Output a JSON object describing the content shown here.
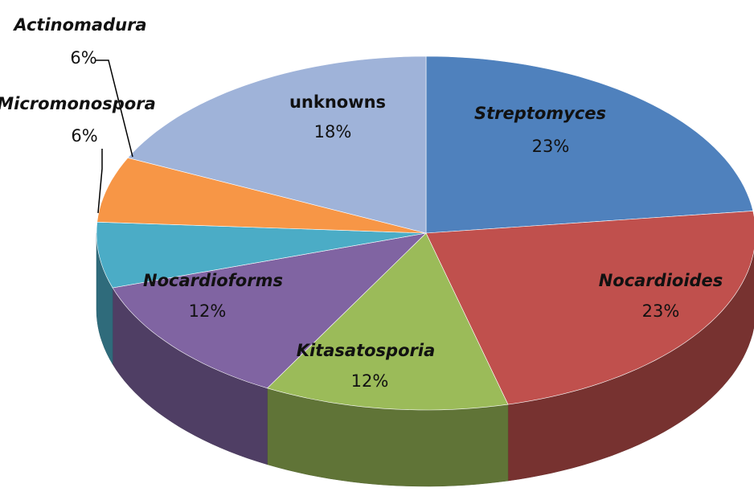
{
  "chart_data": {
    "type": "pie3d",
    "categories": [
      "Streptomyces",
      "Nocardioides",
      "Kitasatosporia",
      "Nocardioforms",
      "Micromonospora",
      "Actinomadura",
      "unknowns"
    ],
    "values": [
      23,
      23,
      12,
      12,
      6,
      6,
      18
    ],
    "value_labels": [
      "23%",
      "23%",
      "12%",
      "12%",
      "6%",
      "6%",
      "18%"
    ],
    "colors": [
      "#4f81bd",
      "#c0504d",
      "#9bbb59",
      "#8064a2",
      "#4bacc6",
      "#f79646",
      "#9fb3d9"
    ]
  }
}
